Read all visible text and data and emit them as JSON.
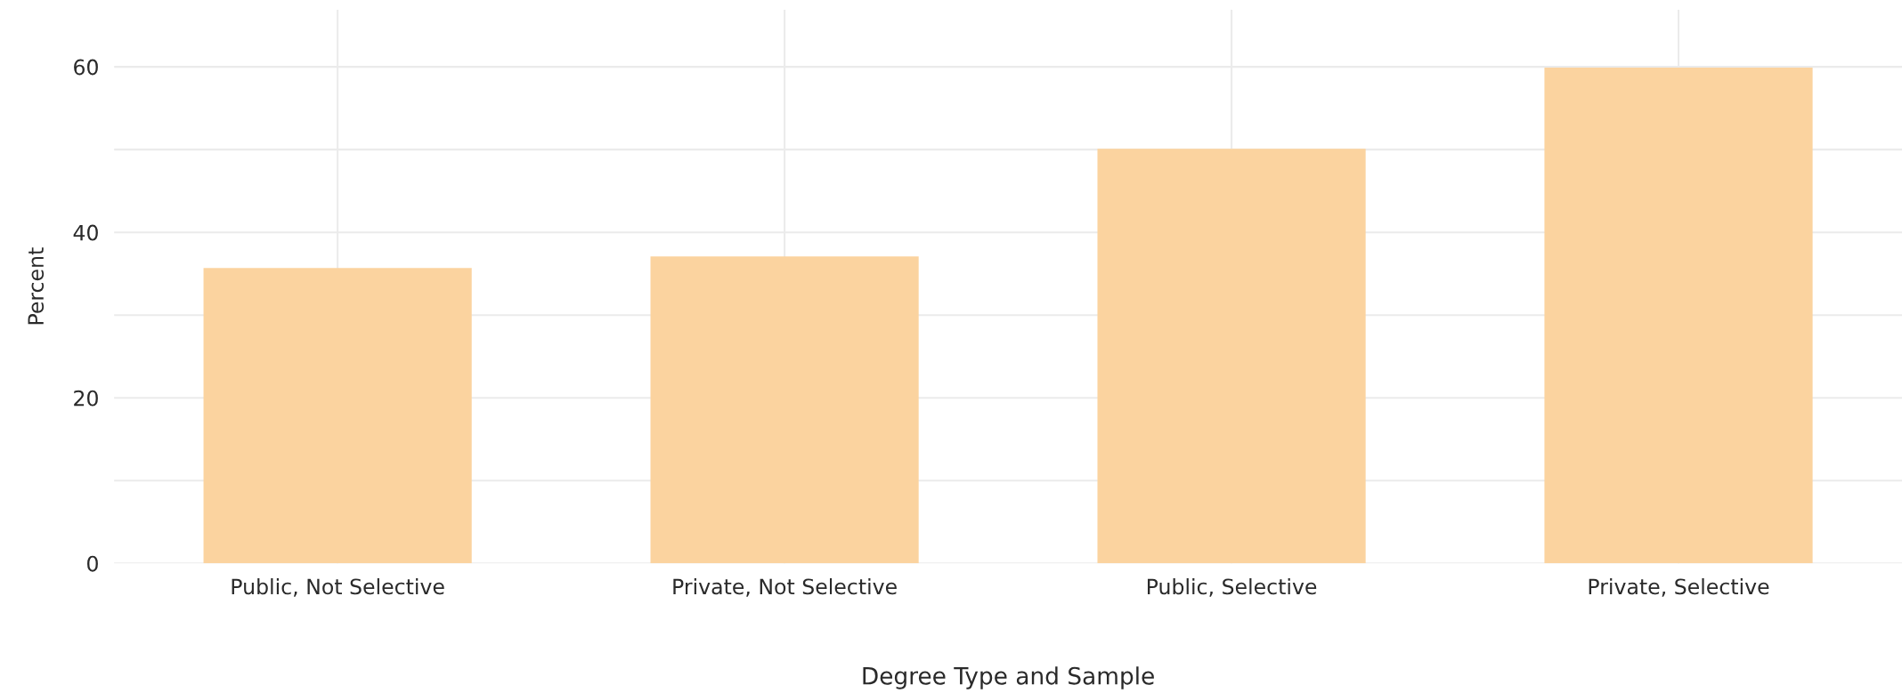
{
  "chart_data": {
    "type": "bar",
    "xlabel": "Degree Type and Sample",
    "ylabel": "Percent",
    "categories": [
      "Public, Not Selective",
      "Private, Not Selective",
      "Public, Selective",
      "Private, Selective"
    ],
    "values": [
      35.7,
      37.1,
      50.1,
      59.9
    ],
    "color": "#fbd39f",
    "ylim": [
      0,
      66.9
    ],
    "yticks": [
      0,
      {
        "value": 10,
        "label": null
      },
      20,
      {
        "value": 30,
        "label": null
      },
      40,
      {
        "value": 50,
        "label": null
      },
      60
    ],
    "grid": true
  }
}
